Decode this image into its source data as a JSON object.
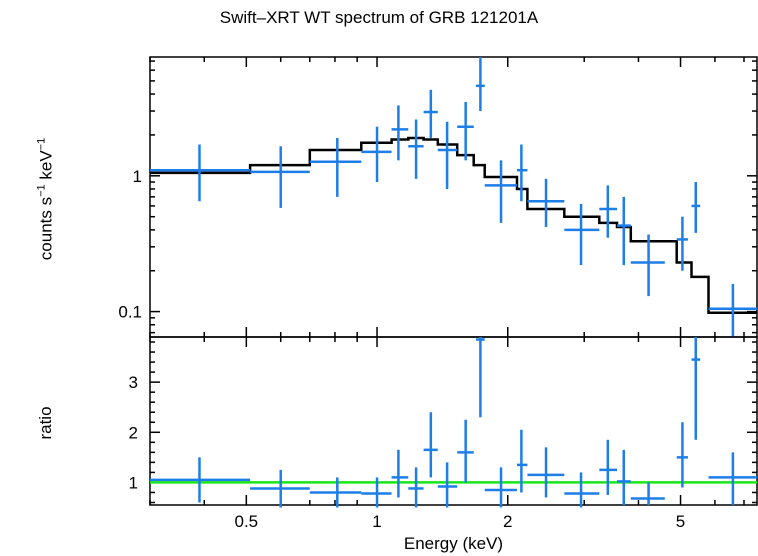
{
  "title": "Swift–XRT WT spectrum of GRB 121201A",
  "xlabel": "Energy (keV)",
  "colors": {
    "data": "#1d7ee8",
    "model": "#000000",
    "ratio_line": "#19e619",
    "axes": "#000000"
  },
  "chart_data": [
    {
      "type": "line",
      "panel": "spectrum",
      "ylabel_main": "counts s",
      "ylabel_sup1": "−1",
      "ylabel_mid": " keV",
      "ylabel_sup2": "−1",
      "xscale": "log",
      "yscale": "log",
      "xlim": [
        0.3,
        7.5
      ],
      "ylim": [
        0.065,
        7.5
      ],
      "y_tick_labels": [
        {
          "v": 0.1,
          "label": "0.1"
        },
        {
          "v": 1,
          "label": "1"
        }
      ],
      "series": [
        {
          "kind": "data",
          "points": [
            {
              "x": 0.39,
              "xlo": 0.3,
              "xhi": 0.51,
              "y": 1.1,
              "ylo": 0.65,
              "yhi": 1.7
            },
            {
              "x": 0.6,
              "xlo": 0.51,
              "xhi": 0.7,
              "y": 1.07,
              "ylo": 0.58,
              "yhi": 1.65
            },
            {
              "x": 0.81,
              "xlo": 0.7,
              "xhi": 0.92,
              "y": 1.27,
              "ylo": 0.7,
              "yhi": 1.9
            },
            {
              "x": 1.0,
              "xlo": 0.92,
              "xhi": 1.08,
              "y": 1.5,
              "ylo": 0.9,
              "yhi": 2.3
            },
            {
              "x": 1.12,
              "xlo": 1.08,
              "xhi": 1.18,
              "y": 2.2,
              "ylo": 1.3,
              "yhi": 3.3
            },
            {
              "x": 1.23,
              "xlo": 1.18,
              "xhi": 1.28,
              "y": 1.65,
              "ylo": 0.95,
              "yhi": 2.6
            },
            {
              "x": 1.33,
              "xlo": 1.28,
              "xhi": 1.38,
              "y": 2.95,
              "ylo": 1.9,
              "yhi": 4.3
            },
            {
              "x": 1.45,
              "xlo": 1.38,
              "xhi": 1.53,
              "y": 1.55,
              "ylo": 0.8,
              "yhi": 2.5
            },
            {
              "x": 1.6,
              "xlo": 1.53,
              "xhi": 1.67,
              "y": 2.3,
              "ylo": 1.3,
              "yhi": 3.5
            },
            {
              "x": 1.73,
              "xlo": 1.69,
              "xhi": 1.77,
              "y": 4.6,
              "ylo": 3.0,
              "yhi": 7.5
            },
            {
              "x": 1.93,
              "xlo": 1.77,
              "xhi": 2.1,
              "y": 0.85,
              "ylo": 0.45,
              "yhi": 1.3
            },
            {
              "x": 2.15,
              "xlo": 2.1,
              "xhi": 2.22,
              "y": 1.1,
              "ylo": 0.65,
              "yhi": 1.7
            },
            {
              "x": 2.45,
              "xlo": 2.22,
              "xhi": 2.7,
              "y": 0.65,
              "ylo": 0.42,
              "yhi": 0.95
            },
            {
              "x": 2.95,
              "xlo": 2.7,
              "xhi": 3.25,
              "y": 0.4,
              "ylo": 0.22,
              "yhi": 0.62
            },
            {
              "x": 3.4,
              "xlo": 3.25,
              "xhi": 3.57,
              "y": 0.57,
              "ylo": 0.35,
              "yhi": 0.85
            },
            {
              "x": 3.7,
              "xlo": 3.57,
              "xhi": 3.84,
              "y": 0.43,
              "ylo": 0.22,
              "yhi": 0.7
            },
            {
              "x": 4.22,
              "xlo": 3.84,
              "xhi": 4.6,
              "y": 0.23,
              "ylo": 0.13,
              "yhi": 0.37
            },
            {
              "x": 5.05,
              "xlo": 4.9,
              "xhi": 5.2,
              "y": 0.34,
              "ylo": 0.2,
              "yhi": 0.5
            },
            {
              "x": 5.42,
              "xlo": 5.3,
              "xhi": 5.55,
              "y": 0.6,
              "ylo": 0.38,
              "yhi": 0.9
            },
            {
              "x": 6.6,
              "xlo": 5.8,
              "xhi": 7.5,
              "y": 0.105,
              "ylo": 0.065,
              "yhi": 0.16
            }
          ]
        },
        {
          "kind": "model",
          "steps": [
            {
              "xlo": 0.3,
              "xhi": 0.51,
              "y": 1.05
            },
            {
              "xlo": 0.51,
              "xhi": 0.7,
              "y": 1.2
            },
            {
              "xlo": 0.7,
              "xhi": 0.92,
              "y": 1.55
            },
            {
              "xlo": 0.92,
              "xhi": 1.08,
              "y": 1.75
            },
            {
              "xlo": 1.08,
              "xhi": 1.18,
              "y": 1.85
            },
            {
              "xlo": 1.18,
              "xhi": 1.28,
              "y": 1.9
            },
            {
              "xlo": 1.28,
              "xhi": 1.38,
              "y": 1.85
            },
            {
              "xlo": 1.38,
              "xhi": 1.53,
              "y": 1.7
            },
            {
              "xlo": 1.53,
              "xhi": 1.67,
              "y": 1.42
            },
            {
              "xlo": 1.67,
              "xhi": 1.77,
              "y": 1.2
            },
            {
              "xlo": 1.77,
              "xhi": 2.1,
              "y": 0.98
            },
            {
              "xlo": 2.1,
              "xhi": 2.22,
              "y": 0.8
            },
            {
              "xlo": 2.22,
              "xhi": 2.7,
              "y": 0.57
            },
            {
              "xlo": 2.7,
              "xhi": 3.25,
              "y": 0.5
            },
            {
              "xlo": 3.25,
              "xhi": 3.57,
              "y": 0.45
            },
            {
              "xlo": 3.57,
              "xhi": 3.84,
              "y": 0.42
            },
            {
              "xlo": 3.84,
              "xhi": 4.9,
              "y": 0.33
            },
            {
              "xlo": 4.9,
              "xhi": 5.3,
              "y": 0.23
            },
            {
              "xlo": 5.3,
              "xhi": 5.8,
              "y": 0.18
            },
            {
              "xlo": 5.8,
              "xhi": 7.5,
              "y": 0.098
            }
          ]
        }
      ]
    },
    {
      "type": "line",
      "panel": "ratio",
      "ylabel": "ratio",
      "xscale": "log",
      "yscale": "linear",
      "xlim": [
        0.3,
        7.5
      ],
      "ylim": [
        0.55,
        3.9
      ],
      "x_tick_labels": [
        {
          "v": 0.5,
          "label": "0.5"
        },
        {
          "v": 1,
          "label": "1"
        },
        {
          "v": 2,
          "label": "2"
        },
        {
          "v": 5,
          "label": "5"
        }
      ],
      "y_tick_labels": [
        {
          "v": 1,
          "label": "1"
        },
        {
          "v": 2,
          "label": "2"
        },
        {
          "v": 3,
          "label": "3"
        }
      ],
      "reference_line": 1,
      "series": [
        {
          "kind": "ratio",
          "points": [
            {
              "x": 0.39,
              "xlo": 0.3,
              "xhi": 0.51,
              "y": 1.05,
              "ylo": 0.6,
              "yhi": 1.5
            },
            {
              "x": 0.6,
              "xlo": 0.51,
              "xhi": 0.7,
              "y": 0.88,
              "ylo": 0.5,
              "yhi": 1.25
            },
            {
              "x": 0.81,
              "xlo": 0.7,
              "xhi": 0.92,
              "y": 0.8,
              "ylo": 0.5,
              "yhi": 1.1
            },
            {
              "x": 1.0,
              "xlo": 0.92,
              "xhi": 1.08,
              "y": 0.78,
              "ylo": 0.5,
              "yhi": 1.1
            },
            {
              "x": 1.12,
              "xlo": 1.08,
              "xhi": 1.18,
              "y": 1.1,
              "ylo": 0.7,
              "yhi": 1.65
            },
            {
              "x": 1.23,
              "xlo": 1.18,
              "xhi": 1.28,
              "y": 0.88,
              "ylo": 0.5,
              "yhi": 1.3
            },
            {
              "x": 1.33,
              "xlo": 1.28,
              "xhi": 1.38,
              "y": 1.65,
              "ylo": 1.1,
              "yhi": 2.4
            },
            {
              "x": 1.45,
              "xlo": 1.38,
              "xhi": 1.53,
              "y": 0.92,
              "ylo": 0.5,
              "yhi": 1.4
            },
            {
              "x": 1.6,
              "xlo": 1.53,
              "xhi": 1.67,
              "y": 1.6,
              "ylo": 1.0,
              "yhi": 2.25
            },
            {
              "x": 1.73,
              "xlo": 1.69,
              "xhi": 1.77,
              "y": 3.85,
              "ylo": 2.3,
              "yhi": 3.9
            },
            {
              "x": 1.93,
              "xlo": 1.77,
              "xhi": 2.1,
              "y": 0.85,
              "ylo": 0.5,
              "yhi": 1.3
            },
            {
              "x": 2.15,
              "xlo": 2.1,
              "xhi": 2.22,
              "y": 1.35,
              "ylo": 0.8,
              "yhi": 2.05
            },
            {
              "x": 2.45,
              "xlo": 2.22,
              "xhi": 2.7,
              "y": 1.15,
              "ylo": 0.7,
              "yhi": 1.7
            },
            {
              "x": 2.95,
              "xlo": 2.7,
              "xhi": 3.25,
              "y": 0.78,
              "ylo": 0.5,
              "yhi": 1.2
            },
            {
              "x": 3.4,
              "xlo": 3.25,
              "xhi": 3.57,
              "y": 1.25,
              "ylo": 0.75,
              "yhi": 1.85
            },
            {
              "x": 3.7,
              "xlo": 3.57,
              "xhi": 3.84,
              "y": 1.02,
              "ylo": 0.55,
              "yhi": 1.65
            },
            {
              "x": 4.22,
              "xlo": 3.84,
              "xhi": 4.6,
              "y": 0.68,
              "ylo": 0.55,
              "yhi": 1.0
            },
            {
              "x": 5.05,
              "xlo": 4.9,
              "xhi": 5.2,
              "y": 1.5,
              "ylo": 0.9,
              "yhi": 2.2
            },
            {
              "x": 5.42,
              "xlo": 5.3,
              "xhi": 5.55,
              "y": 3.45,
              "ylo": 1.85,
              "yhi": 3.9
            },
            {
              "x": 6.6,
              "xlo": 5.8,
              "xhi": 7.5,
              "y": 1.1,
              "ylo": 0.55,
              "yhi": 1.6
            }
          ]
        }
      ]
    }
  ]
}
